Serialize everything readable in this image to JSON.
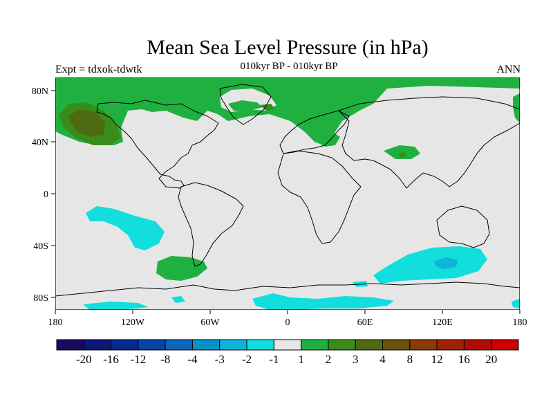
{
  "title": "Mean Sea Level Pressure (in hPa)",
  "subtitle": "010kyr BP - 010kyr BP",
  "left_label": "Expt = tdxok-tdwtk",
  "right_label": "ANN",
  "lat_ticks": [
    "80N",
    "40N",
    "0",
    "40S",
    "80S"
  ],
  "lon_ticks": [
    "180",
    "120W",
    "60W",
    "0",
    "60E",
    "120E",
    "180"
  ],
  "colorbar": {
    "colors": [
      "#1a0a5e",
      "#0a1878",
      "#08298e",
      "#0644a6",
      "#0a66bb",
      "#0890c8",
      "#10b4d8",
      "#12dede",
      "#e6e6e6",
      "#20b040",
      "#3a8c1a",
      "#4e6a10",
      "#6a5008",
      "#8a3a06",
      "#a02006",
      "#b00c06",
      "#cc0000"
    ],
    "labels": [
      "-20",
      "-16",
      "-12",
      "-8",
      "-4",
      "-3",
      "-2",
      "-1",
      "1",
      "2",
      "3",
      "4",
      "8",
      "12",
      "16",
      "20"
    ]
  },
  "palette": {
    "ocean": "#e6e6e6",
    "cyan": "#12dede",
    "cyan_dark": "#10b4d8",
    "green": "#20b040",
    "green_dark": "#3a8c1a",
    "olive": "#4e6a10"
  }
}
